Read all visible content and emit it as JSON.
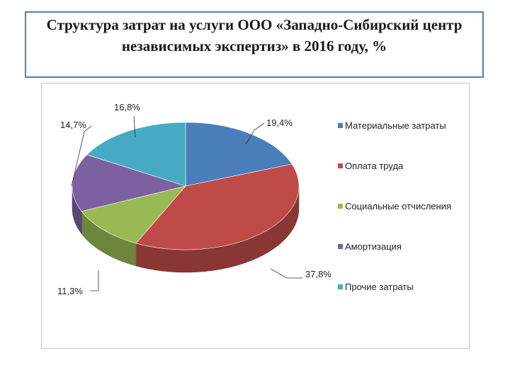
{
  "page": {
    "title": "Структура затрат на услуги ООО «Западно-Сибирский центр независимых экспертиз» в 2016 году, %"
  },
  "chart_data": {
    "type": "pie",
    "subtype": "3d-pie",
    "title": "",
    "categories": [
      "Материальные затраты",
      "Оплата труда",
      "Социальные отчисления",
      "Амортизация",
      "Прочие затраты"
    ],
    "values": [
      19.4,
      37.8,
      11.3,
      14.7,
      16.8
    ],
    "data_labels": [
      "19,4%",
      "37,8%",
      "11,3%",
      "14,7%",
      "16,8%"
    ],
    "colors": [
      "#4a7ebb",
      "#be4b48",
      "#98b954",
      "#7d60a0",
      "#46aac5"
    ],
    "legend_position": "right"
  }
}
